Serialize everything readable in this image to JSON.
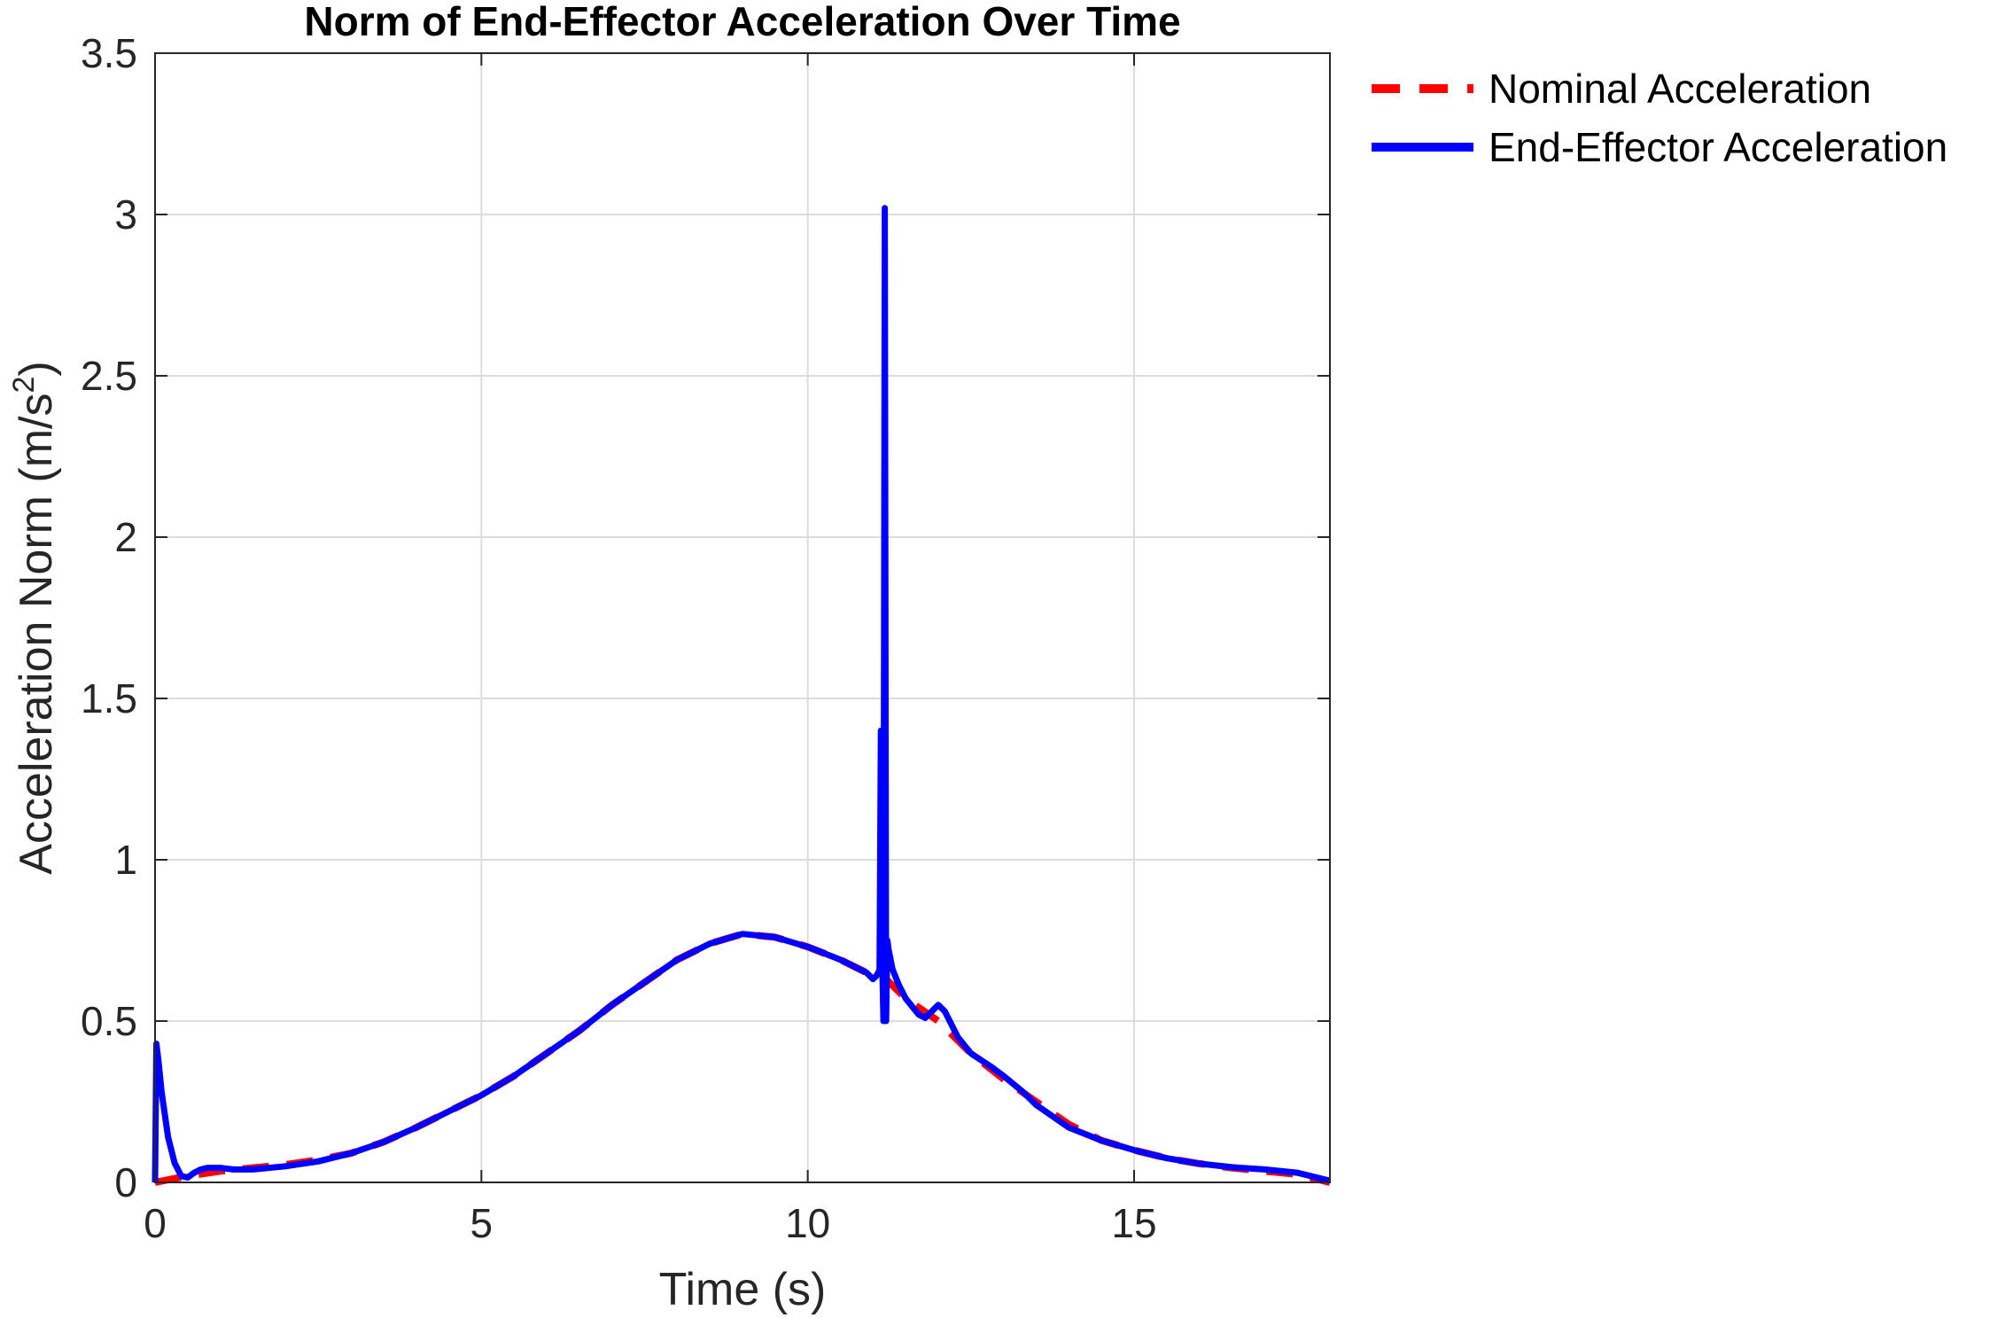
{
  "chart_data": {
    "type": "line",
    "title": "Norm of End-Effector Acceleration Over Time",
    "xlabel": "Time (s)",
    "ylabel_main": "Acceleration Norm (m/s",
    "ylabel_sup": "2",
    "ylabel_close": ")",
    "xlim": [
      0,
      18
    ],
    "ylim": [
      0,
      3.5
    ],
    "xticks": [
      0,
      5,
      10,
      15
    ],
    "xtick_labels": [
      "0",
      "5",
      "10",
      "15"
    ],
    "yticks": [
      0,
      0.5,
      1,
      1.5,
      2,
      2.5,
      3,
      3.5
    ],
    "ytick_labels": [
      "0",
      "0.5",
      "1",
      "1.5",
      "2",
      "2.5",
      "3",
      "3.5"
    ],
    "grid": true,
    "legend_position": "outside-top-right",
    "series": [
      {
        "name": "Nominal Acceleration",
        "color": "#ff0000",
        "style": "dashed",
        "x": [
          0,
          0.5,
          1,
          1.5,
          2,
          2.5,
          3,
          3.5,
          4,
          4.5,
          5,
          5.5,
          6,
          6.5,
          7,
          7.5,
          8,
          8.5,
          9,
          9.5,
          10,
          10.5,
          11,
          11.2,
          11.5,
          12,
          12.5,
          13,
          13.5,
          14,
          14.5,
          15,
          15.5,
          16,
          16.5,
          17,
          17.5,
          18
        ],
        "y": [
          0.0,
          0.02,
          0.035,
          0.045,
          0.055,
          0.07,
          0.09,
          0.125,
          0.17,
          0.22,
          0.27,
          0.33,
          0.4,
          0.47,
          0.55,
          0.62,
          0.69,
          0.74,
          0.77,
          0.76,
          0.73,
          0.69,
          0.64,
          0.63,
          0.57,
          0.5,
          0.4,
          0.32,
          0.25,
          0.18,
          0.13,
          0.1,
          0.075,
          0.058,
          0.045,
          0.035,
          0.025,
          0.0
        ]
      },
      {
        "name": "End-Effector Acceleration",
        "color": "#0000ff",
        "style": "solid",
        "x": [
          0,
          0.02,
          0.05,
          0.1,
          0.2,
          0.3,
          0.4,
          0.5,
          0.6,
          0.7,
          0.8,
          1.0,
          1.2,
          1.5,
          2.0,
          2.5,
          3.0,
          3.5,
          4.0,
          4.5,
          5.0,
          5.5,
          6.0,
          6.5,
          7.0,
          7.5,
          8.0,
          8.5,
          9.0,
          9.5,
          10.0,
          10.5,
          10.9,
          11.0,
          11.05,
          11.08,
          11.1,
          11.12,
          11.14,
          11.16,
          11.18,
          11.2,
          11.22,
          11.24,
          11.26,
          11.3,
          11.4,
          11.5,
          11.7,
          11.8,
          11.9,
          12.0,
          12.1,
          12.3,
          12.5,
          12.8,
          13.0,
          13.3,
          13.5,
          14.0,
          14.5,
          15.0,
          15.5,
          16.0,
          16.5,
          17.0,
          17.5,
          18.0
        ],
        "y": [
          0.0,
          0.43,
          0.38,
          0.28,
          0.14,
          0.06,
          0.02,
          0.015,
          0.03,
          0.04,
          0.045,
          0.045,
          0.04,
          0.04,
          0.05,
          0.065,
          0.09,
          0.125,
          0.17,
          0.22,
          0.27,
          0.33,
          0.4,
          0.47,
          0.55,
          0.62,
          0.69,
          0.74,
          0.77,
          0.76,
          0.73,
          0.69,
          0.65,
          0.63,
          0.64,
          0.65,
          0.66,
          1.4,
          0.7,
          0.5,
          3.02,
          0.5,
          0.75,
          0.72,
          0.7,
          0.66,
          0.61,
          0.57,
          0.52,
          0.51,
          0.53,
          0.55,
          0.53,
          0.45,
          0.4,
          0.36,
          0.33,
          0.28,
          0.24,
          0.17,
          0.13,
          0.1,
          0.075,
          0.058,
          0.047,
          0.04,
          0.03,
          0.005
        ]
      }
    ]
  }
}
